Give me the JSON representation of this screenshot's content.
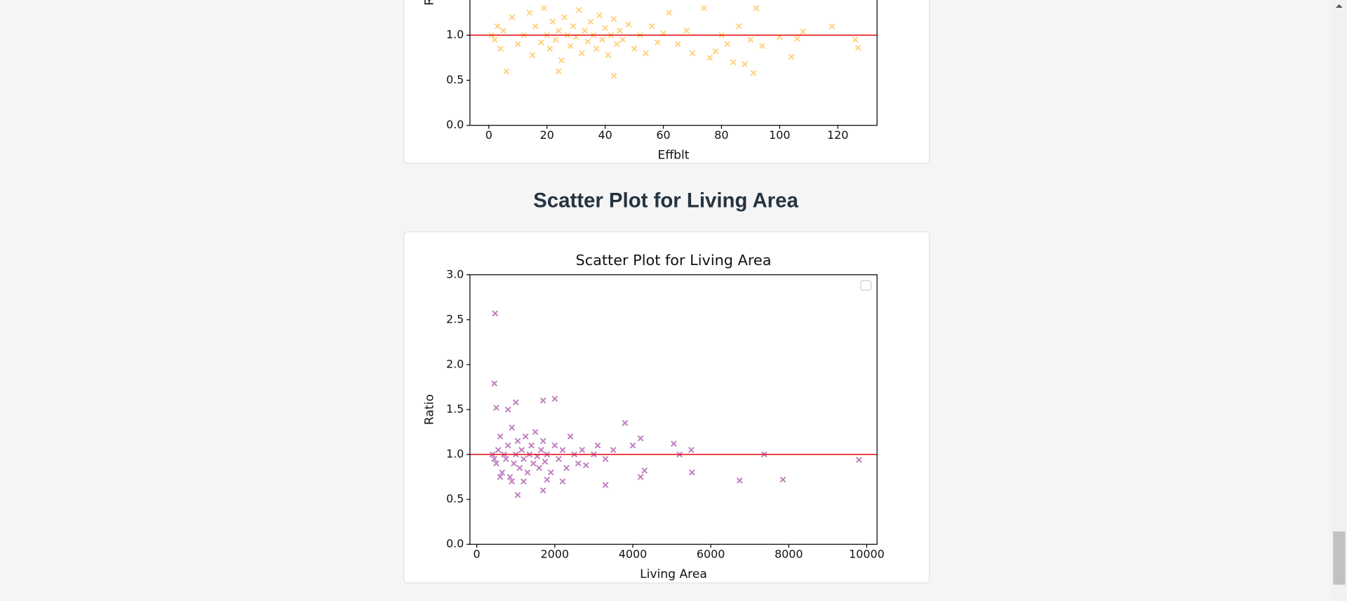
{
  "heading": "Scatter Plot for Living Area",
  "chart_data": [
    {
      "type": "scatter",
      "xlabel": "Effblt",
      "ylabel": "Ratio",
      "marker": "x",
      "xlim": [
        -6.5,
        133.5
      ],
      "ylim": [
        0,
        3
      ],
      "xticks": [
        0,
        20,
        40,
        60,
        80,
        100,
        120
      ],
      "yticks": [
        {
          "value": 0,
          "label": "0.0"
        },
        {
          "value": 0.5,
          "label": "0.5"
        },
        {
          "value": 1,
          "label": "1.0"
        }
      ],
      "hline": 1,
      "hline_color": "#e8191c",
      "series": [
        {
          "color": "#ffa500",
          "x": [
            1,
            2,
            3,
            4,
            5,
            6,
            8,
            10,
            12,
            14,
            15,
            16,
            18,
            19,
            20,
            21,
            22,
            23,
            24,
            25,
            26,
            27,
            28,
            29,
            30,
            31,
            32,
            33,
            34,
            35,
            36,
            37,
            38,
            39,
            40,
            41,
            42,
            43,
            44,
            45,
            46,
            48,
            50,
            52,
            54,
            56,
            58,
            60,
            62,
            65,
            68,
            70,
            74,
            76,
            78,
            80,
            82,
            84,
            86,
            88,
            90,
            92,
            94,
            100,
            104,
            106,
            108,
            118,
            126,
            127,
            91,
            43,
            24
          ],
          "y": [
            1.0,
            0.95,
            1.1,
            0.85,
            1.05,
            0.6,
            1.2,
            0.9,
            1.0,
            1.25,
            0.78,
            1.1,
            0.92,
            1.3,
            1.0,
            0.85,
            1.15,
            0.95,
            1.05,
            0.72,
            1.2,
            1.0,
            0.88,
            1.1,
            0.98,
            1.28,
            0.8,
            1.05,
            0.93,
            1.15,
            1.0,
            0.85,
            1.22,
            0.95,
            1.08,
            0.78,
            1.0,
            1.18,
            0.9,
            1.05,
            0.95,
            1.12,
            0.85,
            1.0,
            0.8,
            1.1,
            0.92,
            1.02,
            1.25,
            0.9,
            1.05,
            0.8,
            1.3,
            0.75,
            0.82,
            1.0,
            0.9,
            0.7,
            1.1,
            0.68,
            0.95,
            1.3,
            0.88,
            0.98,
            0.76,
            0.96,
            1.04,
            1.1,
            0.95,
            0.86,
            0.58,
            0.55,
            0.6
          ]
        }
      ]
    },
    {
      "type": "scatter",
      "title": "Scatter Plot for Living Area",
      "xlabel": "Living Area",
      "ylabel": "Ratio",
      "marker": "x",
      "xlim": [
        -176,
        10264
      ],
      "ylim": [
        0,
        3
      ],
      "xticks": [
        0,
        2000,
        4000,
        6000,
        8000,
        10000
      ],
      "yticks": [
        {
          "value": 0,
          "label": "0.0"
        },
        {
          "value": 0.5,
          "label": "0.5"
        },
        {
          "value": 1,
          "label": "1.0"
        },
        {
          "value": 1.5,
          "label": "1.5"
        },
        {
          "value": 2,
          "label": "2.0"
        },
        {
          "value": 2.5,
          "label": "2.5"
        },
        {
          "value": 3,
          "label": "3.0"
        }
      ],
      "hline": 1,
      "hline_color": "#e8191c",
      "legend": "upper right",
      "series": [
        {
          "color": "#800080",
          "x": [
            500,
            550,
            600,
            650,
            700,
            750,
            800,
            850,
            900,
            950,
            1000,
            1050,
            1100,
            1150,
            1200,
            1250,
            1300,
            1350,
            1400,
            1450,
            1500,
            1550,
            1600,
            1650,
            1700,
            1750,
            1800,
            1900,
            2000,
            2100,
            2200,
            2300,
            2400,
            2500,
            2600,
            2700,
            2800,
            3000,
            3100,
            3300,
            3500,
            400,
            450,
            1200,
            900,
            1800,
            2200,
            600,
            470,
            450,
            6740,
            7850,
            9800,
            7370,
            5520,
            5500,
            5200,
            4300,
            4200,
            3800,
            4200,
            4000,
            5050,
            2000,
            1700,
            1000,
            3300,
            1050,
            1700,
            800,
            500
          ],
          "y": [
            0.9,
            1.05,
            1.2,
            0.8,
            1.0,
            0.95,
            1.1,
            0.75,
            1.3,
            0.9,
            1.0,
            1.15,
            0.85,
            1.05,
            0.95,
            1.2,
            0.8,
            1.0,
            1.1,
            0.9,
            1.25,
            0.98,
            0.85,
            1.05,
            1.15,
            0.92,
            1.0,
            0.8,
            1.1,
            0.95,
            1.05,
            0.85,
            1.2,
            1.0,
            0.9,
            1.05,
            0.88,
            1.0,
            1.1,
            0.95,
            1.05,
            1.0,
            0.95,
            0.7,
            0.7,
            0.72,
            0.7,
            0.75,
            2.57,
            1.79,
            0.71,
            0.72,
            0.94,
            1.0,
            0.8,
            1.05,
            1.0,
            0.82,
            0.75,
            1.35,
            1.18,
            1.1,
            1.12,
            1.62,
            1.6,
            1.58,
            0.66,
            0.55,
            0.6,
            1.5,
            1.52
          ]
        }
      ]
    }
  ]
}
